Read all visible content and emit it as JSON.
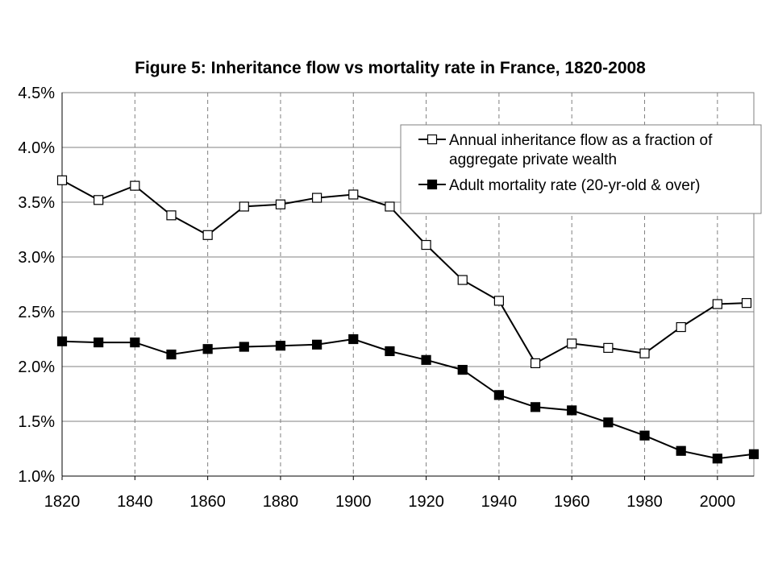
{
  "chart_data": {
    "type": "line",
    "title": "Figure 5: Inheritance flow vs mortality rate in France, 1820-2008",
    "xlabel": "",
    "ylabel": "",
    "xlim": [
      1820,
      2010
    ],
    "ylim": [
      0.01,
      0.045
    ],
    "x_ticks": [
      "1820",
      "1840",
      "1860",
      "1880",
      "1900",
      "1920",
      "1940",
      "1960",
      "1980",
      "2000"
    ],
    "y_ticks": [
      "1.0%",
      "1.5%",
      "2.0%",
      "2.5%",
      "3.0%",
      "3.5%",
      "4.0%",
      "4.5%"
    ],
    "grid": {
      "horizontal": "solid",
      "vertical": "dashed"
    },
    "legend_position": "top-right",
    "series": [
      {
        "name": "Annual inheritance flow as a fraction of aggregate private wealth",
        "legend_lines": [
          "Annual inheritance flow as a fraction of",
          "aggregate private wealth"
        ],
        "marker": "open-square",
        "x": [
          1820,
          1830,
          1840,
          1850,
          1860,
          1870,
          1880,
          1890,
          1900,
          1910,
          1920,
          1930,
          1940,
          1950,
          1960,
          1970,
          1980,
          1990,
          2000,
          2008
        ],
        "y": [
          0.037,
          0.0352,
          0.0365,
          0.0338,
          0.032,
          0.0346,
          0.0348,
          0.0354,
          0.0357,
          0.0346,
          0.0311,
          0.0279,
          0.026,
          0.0203,
          0.0221,
          0.0217,
          0.0212,
          0.0236,
          0.0257,
          0.0258
        ]
      },
      {
        "name": "Adult mortality rate (20-yr-old & over)",
        "legend_lines": [
          "Adult mortality rate (20-yr-old & over)"
        ],
        "marker": "filled-square",
        "x": [
          1820,
          1830,
          1840,
          1850,
          1860,
          1870,
          1880,
          1890,
          1900,
          1910,
          1920,
          1930,
          1940,
          1950,
          1960,
          1970,
          1980,
          1990,
          2000,
          2010
        ],
        "y": [
          0.0223,
          0.0222,
          0.0222,
          0.0211,
          0.0216,
          0.0218,
          0.0219,
          0.022,
          0.0225,
          0.0214,
          0.0206,
          0.0197,
          0.0174,
          0.0163,
          0.016,
          0.0149,
          0.0137,
          0.0123,
          0.0116,
          0.012
        ]
      }
    ],
    "colors": {
      "line": "#000000",
      "grid": "#808080",
      "open_marker_fill": "#ffffff",
      "filled_marker_fill": "#000000"
    }
  }
}
